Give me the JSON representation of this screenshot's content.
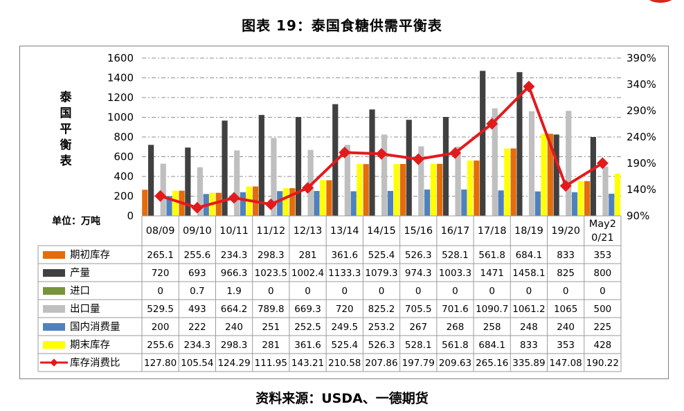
{
  "title": "图表 19：泰国食糖供需平衡表",
  "source": "资料来源：USDA、一德期货",
  "chart_data": {
    "type": "bar",
    "y_title": "泰国平衡表",
    "unit_label": "单位：万吨",
    "ylim_left": [
      0,
      1600
    ],
    "ylim_right": [
      90,
      390
    ],
    "left_ticks": [
      "1600",
      "1400",
      "1200",
      "1000",
      "800",
      "600",
      "400",
      "200",
      "0"
    ],
    "right_ticks": [
      "390%",
      "340%",
      "290%",
      "240%",
      "190%",
      "140%",
      "90%"
    ],
    "grid": "dashed",
    "legend_placement": "data-table",
    "categories": [
      "08/09",
      "09/10",
      "10/11",
      "11/12",
      "12/13",
      "13/14",
      "14/15",
      "15/16",
      "16/17",
      "17/18",
      "18/19",
      "19/20",
      "May20/21"
    ],
    "category_lines": [
      [
        "08/09"
      ],
      [
        "09/10"
      ],
      [
        "10/11"
      ],
      [
        "11/12"
      ],
      [
        "12/13"
      ],
      [
        "13/14"
      ],
      [
        "14/15"
      ],
      [
        "15/16"
      ],
      [
        "16/17"
      ],
      [
        "17/18"
      ],
      [
        "18/19"
      ],
      [
        "19/20"
      ],
      [
        "May2",
        "0/21"
      ]
    ],
    "series": [
      {
        "name": "期初库存",
        "type": "bar",
        "color": "#e46c0a",
        "values": [
          265.1,
          255.6,
          234.3,
          298.3,
          281,
          361.6,
          525.4,
          526.3,
          528.1,
          561.8,
          684.1,
          833,
          353
        ],
        "labels": [
          "265.1",
          "255.6",
          "234.3",
          "298.3",
          "281",
          "361.6",
          "525.4",
          "526.3",
          "528.1",
          "561.8",
          "684.1",
          "833",
          "353"
        ]
      },
      {
        "name": "产量",
        "type": "bar",
        "color": "#404040",
        "values": [
          720,
          693,
          966.3,
          1023.5,
          1002.4,
          1133.3,
          1079.3,
          974.3,
          1003.3,
          1471,
          1458.1,
          825,
          800
        ],
        "labels": [
          "720",
          "693",
          "966.3",
          "1023.5",
          "1002.4",
          "1133.3",
          "1079.3",
          "974.3",
          "1003.3",
          "1471",
          "1458.1",
          "825",
          "800"
        ]
      },
      {
        "name": "进口",
        "type": "bar",
        "color": "#77933c",
        "values": [
          0,
          0.7,
          1.9,
          0,
          0,
          0,
          0,
          0,
          0,
          0,
          0,
          0,
          0
        ],
        "labels": [
          "0",
          "0.7",
          "1.9",
          "0",
          "0",
          "0",
          "0",
          "0",
          "0",
          "0",
          "0",
          "0",
          "0"
        ]
      },
      {
        "name": "出口量",
        "type": "bar",
        "color": "#bfbfbf",
        "values": [
          529.5,
          493,
          664.2,
          789.8,
          669.3,
          720,
          825.2,
          705.5,
          701.6,
          1090.7,
          1061.2,
          1065,
          500
        ],
        "labels": [
          "529.5",
          "493",
          "664.2",
          "789.8",
          "669.3",
          "720",
          "825.2",
          "705.5",
          "701.6",
          "1090.7",
          "1061.2",
          "1065",
          "500"
        ]
      },
      {
        "name": "国内消费量",
        "type": "bar",
        "color": "#4f81bd",
        "values": [
          200,
          222,
          240,
          251,
          252.5,
          249.5,
          253.2,
          267,
          268,
          258,
          248,
          240,
          225
        ],
        "labels": [
          "200",
          "222",
          "240",
          "251",
          "252.5",
          "249.5",
          "253.2",
          "267",
          "268",
          "258",
          "248",
          "240",
          "225"
        ]
      },
      {
        "name": "期末库存",
        "type": "bar",
        "color": "#ffff00",
        "values": [
          255.6,
          234.3,
          298.3,
          281,
          361.6,
          525.4,
          526.3,
          528.1,
          561.8,
          684.1,
          833,
          353,
          428
        ],
        "labels": [
          "255.6",
          "234.3",
          "298.3",
          "281",
          "361.6",
          "525.4",
          "526.3",
          "528.1",
          "561.8",
          "684.1",
          "833",
          "353",
          "428"
        ]
      },
      {
        "name": "库存消费比",
        "type": "line",
        "axis": "right",
        "color": "#e31a1c",
        "values": [
          127.8,
          105.54,
          124.29,
          111.95,
          143.21,
          210.58,
          207.86,
          197.79,
          209.63,
          265.16,
          335.89,
          147.08,
          190.22
        ],
        "labels": [
          "127.80",
          "105.54",
          "124.29",
          "111.95",
          "143.21",
          "210.58",
          "207.86",
          "197.79",
          "209.63",
          "265.16",
          "335.89",
          "147.08",
          "190.22"
        ]
      }
    ]
  }
}
